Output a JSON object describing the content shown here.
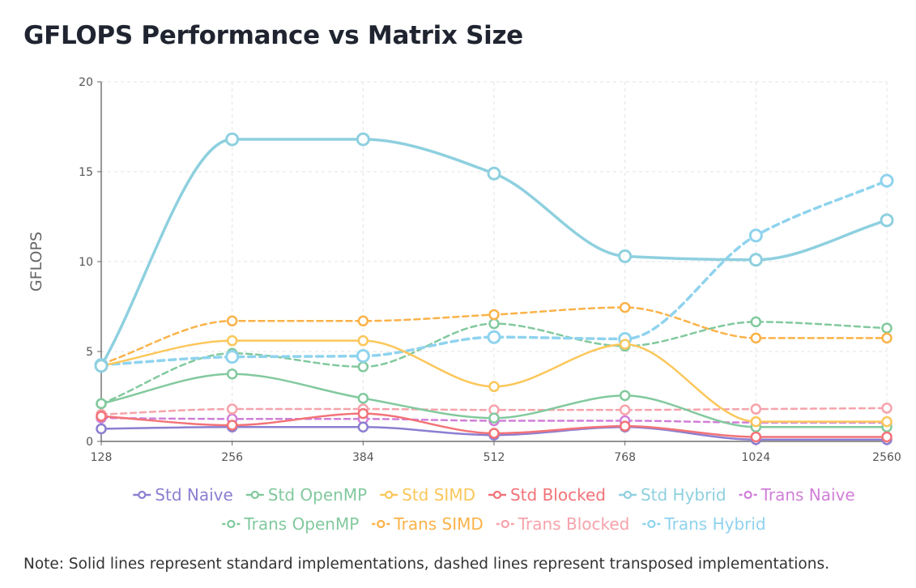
{
  "title": "GFLOPS Performance vs Matrix Size",
  "note": "Note: Solid lines represent standard implementations, dashed lines represent transposed implementations.",
  "chart_data": {
    "type": "line",
    "title": "GFLOPS Performance vs Matrix Size",
    "xlabel": "",
    "ylabel": "GFLOPS",
    "ylim": [
      0,
      20
    ],
    "yticks": [
      0,
      5,
      10,
      15,
      20
    ],
    "categories": [
      "128",
      "256",
      "384",
      "512",
      "768",
      "1024",
      "2560"
    ],
    "grid": true,
    "legend_position": "bottom",
    "series": [
      {
        "name": "Std Naive",
        "color": "#8b7fd1",
        "dashed": false,
        "values": [
          0.7,
          0.8,
          0.8,
          0.35,
          0.8,
          0.1,
          0.1
        ]
      },
      {
        "name": "Std OpenMP",
        "color": "#82c99e",
        "dashed": false,
        "values": [
          2.1,
          3.75,
          2.4,
          1.3,
          2.55,
          0.8,
          0.8
        ]
      },
      {
        "name": "Std SIMD",
        "color": "#fbc75b",
        "dashed": false,
        "values": [
          4.2,
          5.6,
          5.6,
          3.05,
          5.4,
          1.1,
          1.1
        ]
      },
      {
        "name": "Std Blocked",
        "color": "#f27378",
        "dashed": false,
        "values": [
          1.4,
          0.9,
          1.55,
          0.45,
          0.85,
          0.25,
          0.25
        ]
      },
      {
        "name": "Std Hybrid",
        "color": "#8ed0df",
        "dashed": false,
        "values": [
          4.2,
          16.8,
          16.8,
          14.9,
          10.3,
          10.1,
          12.3
        ]
      },
      {
        "name": "Trans Naive",
        "color": "#d07fd8",
        "dashed": true,
        "values": [
          1.3,
          1.25,
          1.25,
          1.15,
          1.15,
          1.05,
          1.05
        ]
      },
      {
        "name": "Trans OpenMP",
        "color": "#82c99e",
        "dashed": true,
        "values": [
          2.1,
          4.9,
          4.15,
          6.55,
          5.3,
          6.65,
          6.3
        ]
      },
      {
        "name": "Trans SIMD",
        "color": "#fbb249",
        "dashed": true,
        "values": [
          4.3,
          6.7,
          6.7,
          7.05,
          7.45,
          5.75,
          5.75
        ]
      },
      {
        "name": "Trans Blocked",
        "color": "#f6a3ab",
        "dashed": true,
        "values": [
          1.5,
          1.8,
          1.8,
          1.75,
          1.75,
          1.8,
          1.85
        ]
      },
      {
        "name": "Trans Hybrid",
        "color": "#8fd3ee",
        "dashed": true,
        "values": [
          4.25,
          4.7,
          4.75,
          5.8,
          5.7,
          11.45,
          14.5
        ]
      }
    ]
  }
}
